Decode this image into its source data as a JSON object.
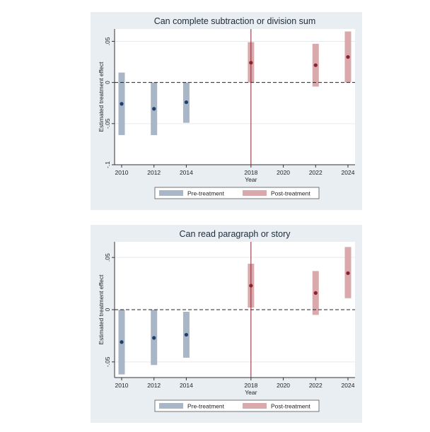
{
  "chart_data": [
    {
      "type": "range-point",
      "title": "Can complete subtraction or division sum",
      "xlabel": "Year",
      "ylabel": "Estimated treatment effect",
      "x_ticks": [
        "2010",
        "2012",
        "2014",
        "2018",
        "2020",
        "2022",
        "2024"
      ],
      "y_ticks": [
        "-.1",
        "-.05",
        "0",
        ".05"
      ],
      "ylim": [
        -0.1,
        0.065
      ],
      "reference_line_y": 0,
      "treatment_line_x": "2018",
      "grid": true,
      "legend_position": "bottom",
      "series": [
        {
          "name": "Pre-treatment",
          "color": "#a8b6c8",
          "point_color": "#1f3f6e",
          "points": [
            {
              "x": "2010",
              "y": -0.026,
              "lower": -0.064,
              "upper": 0.012
            },
            {
              "x": "2012",
              "y": -0.032,
              "lower": -0.064,
              "upper": 0.0
            },
            {
              "x": "2014",
              "y": -0.024,
              "lower": -0.049,
              "upper": 0.0
            }
          ]
        },
        {
          "name": "Post-treatment",
          "color": "#d9a9ac",
          "point_color": "#8b2230",
          "points": [
            {
              "x": "2018",
              "y": 0.024,
              "lower": 0.0,
              "upper": 0.049
            },
            {
              "x": "2022",
              "y": 0.021,
              "lower": -0.005,
              "upper": 0.047
            },
            {
              "x": "2024",
              "y": 0.031,
              "lower": 0.0,
              "upper": 0.062
            }
          ]
        }
      ]
    },
    {
      "type": "range-point",
      "title": "Can read paragraph or story",
      "xlabel": "Year",
      "ylabel": "Estimated treatment effect",
      "x_ticks": [
        "2010",
        "2012",
        "2014",
        "2018",
        "2020",
        "2022",
        "2024"
      ],
      "y_ticks": [
        "-.05",
        "0",
        ".05"
      ],
      "ylim": [
        -0.065,
        0.065
      ],
      "reference_line_y": 0,
      "treatment_line_x": "2018",
      "grid": true,
      "legend_position": "bottom",
      "series": [
        {
          "name": "Pre-treatment",
          "color": "#a8b6c8",
          "point_color": "#1f3f6e",
          "points": [
            {
              "x": "2010",
              "y": -0.031,
              "lower": -0.062,
              "upper": 0.0
            },
            {
              "x": "2012",
              "y": -0.027,
              "lower": -0.053,
              "upper": 0.0
            },
            {
              "x": "2014",
              "y": -0.024,
              "lower": -0.046,
              "upper": -0.002
            }
          ]
        },
        {
          "name": "Post-treatment",
          "color": "#d9a9ac",
          "point_color": "#8b2230",
          "points": [
            {
              "x": "2018",
              "y": 0.023,
              "lower": 0.002,
              "upper": 0.044
            },
            {
              "x": "2022",
              "y": 0.016,
              "lower": -0.005,
              "upper": 0.037
            },
            {
              "x": "2024",
              "y": 0.035,
              "lower": 0.011,
              "upper": 0.06
            }
          ]
        }
      ]
    }
  ]
}
